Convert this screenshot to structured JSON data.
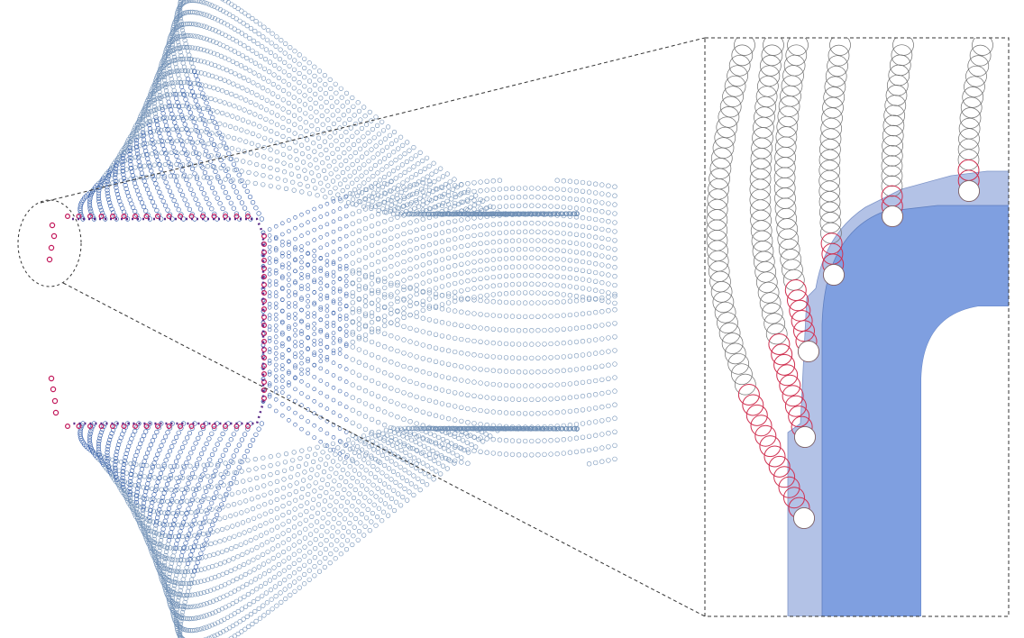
{
  "figure": {
    "colors": {
      "background": "#ffffff",
      "particle_stroke": "#6f8fb5",
      "particle_stroke_dense": "#2f5aa8",
      "contact_particle": "#c2185b",
      "callout_line": "#333333",
      "outer_layer_fill": "#b3c2e6",
      "inner_core_fill": "#7f9fe0",
      "zoom_particle_stroke": "#6e6e6e",
      "zoom_contact_stroke": "#d03050"
    },
    "overview": {
      "panel": "particle-strands-around-notched-body",
      "callout_shape": "dashed-circle"
    },
    "zoom_panel": {
      "frame": "dashed-rectangle",
      "content": "magnified-particle-chains-on-layered-corner"
    }
  }
}
